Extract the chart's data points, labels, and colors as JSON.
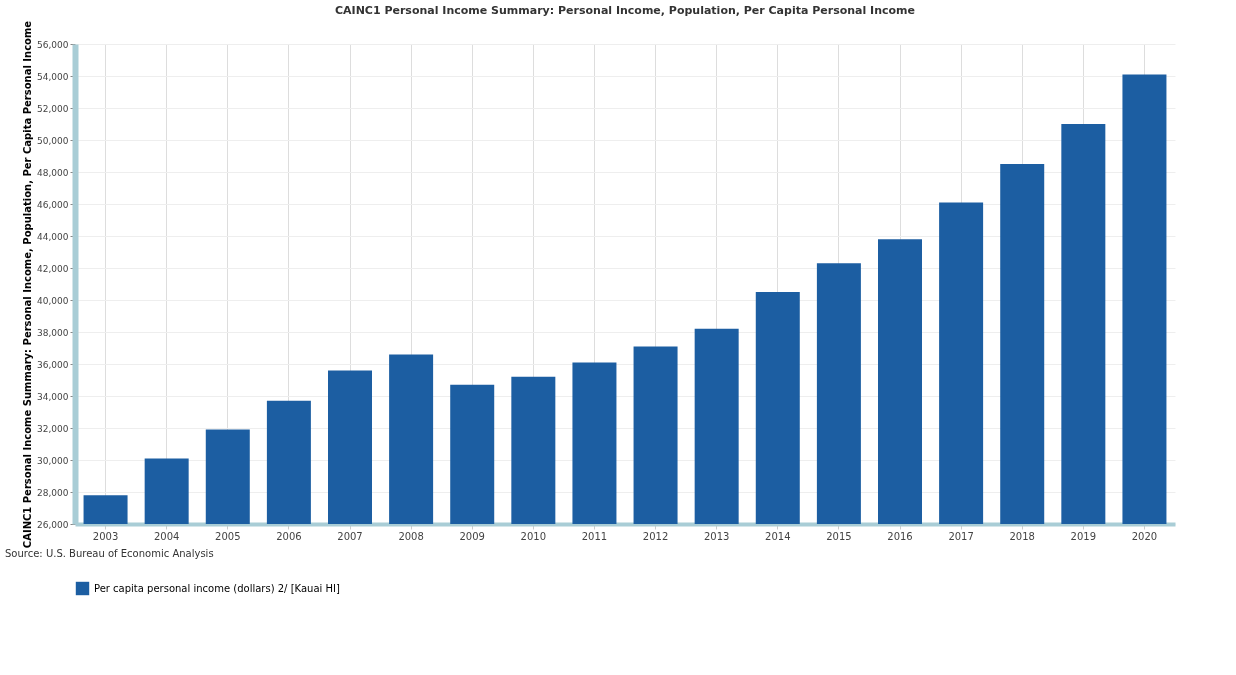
{
  "chart_data": {
    "type": "bar",
    "title": "CAINC1 Personal Income Summary: Personal Income, Population, Per Capita Personal Income",
    "ylabel": "CAINC1 Personal Income Summary: Personal Income, Population, Per Capita Personal Income",
    "categories": [
      "2003",
      "2004",
      "2005",
      "2006",
      "2007",
      "2008",
      "2009",
      "2010",
      "2011",
      "2012",
      "2013",
      "2014",
      "2015",
      "2016",
      "2017",
      "2018",
      "2019",
      "2020"
    ],
    "series": [
      {
        "name": "Per capita personal income (dollars) 2/ [Kauai HI]",
        "color": "#1c5ea2",
        "values": [
          27800,
          30100,
          31900,
          33700,
          35600,
          36600,
          34700,
          35200,
          36100,
          37100,
          38200,
          40500,
          42300,
          43800,
          46100,
          48500,
          51000,
          54100
        ]
      }
    ],
    "ylim": [
      26000,
      56000
    ],
    "yticks": [
      {
        "value": 26000,
        "label": "26,000"
      },
      {
        "value": 28000,
        "label": "28,000"
      },
      {
        "value": 30000,
        "label": "30,000"
      },
      {
        "value": 32000,
        "label": "32,000"
      },
      {
        "value": 34000,
        "label": "34,000"
      },
      {
        "value": 36000,
        "label": "36,000"
      },
      {
        "value": 38000,
        "label": "38,000"
      },
      {
        "value": 40000,
        "label": "40,000"
      },
      {
        "value": 42000,
        "label": "42,000"
      },
      {
        "value": 44000,
        "label": "44,000"
      },
      {
        "value": 46000,
        "label": "46,000"
      },
      {
        "value": 48000,
        "label": "48,000"
      },
      {
        "value": 50000,
        "label": "50,000"
      },
      {
        "value": 52000,
        "label": "52,000"
      },
      {
        "value": 54000,
        "label": "54,000"
      },
      {
        "value": 56000,
        "label": "56,000"
      }
    ],
    "grid": true,
    "legend": "bottom left",
    "annotations": [
      "Source: U.S. Bureau of Economic Analysis"
    ]
  }
}
